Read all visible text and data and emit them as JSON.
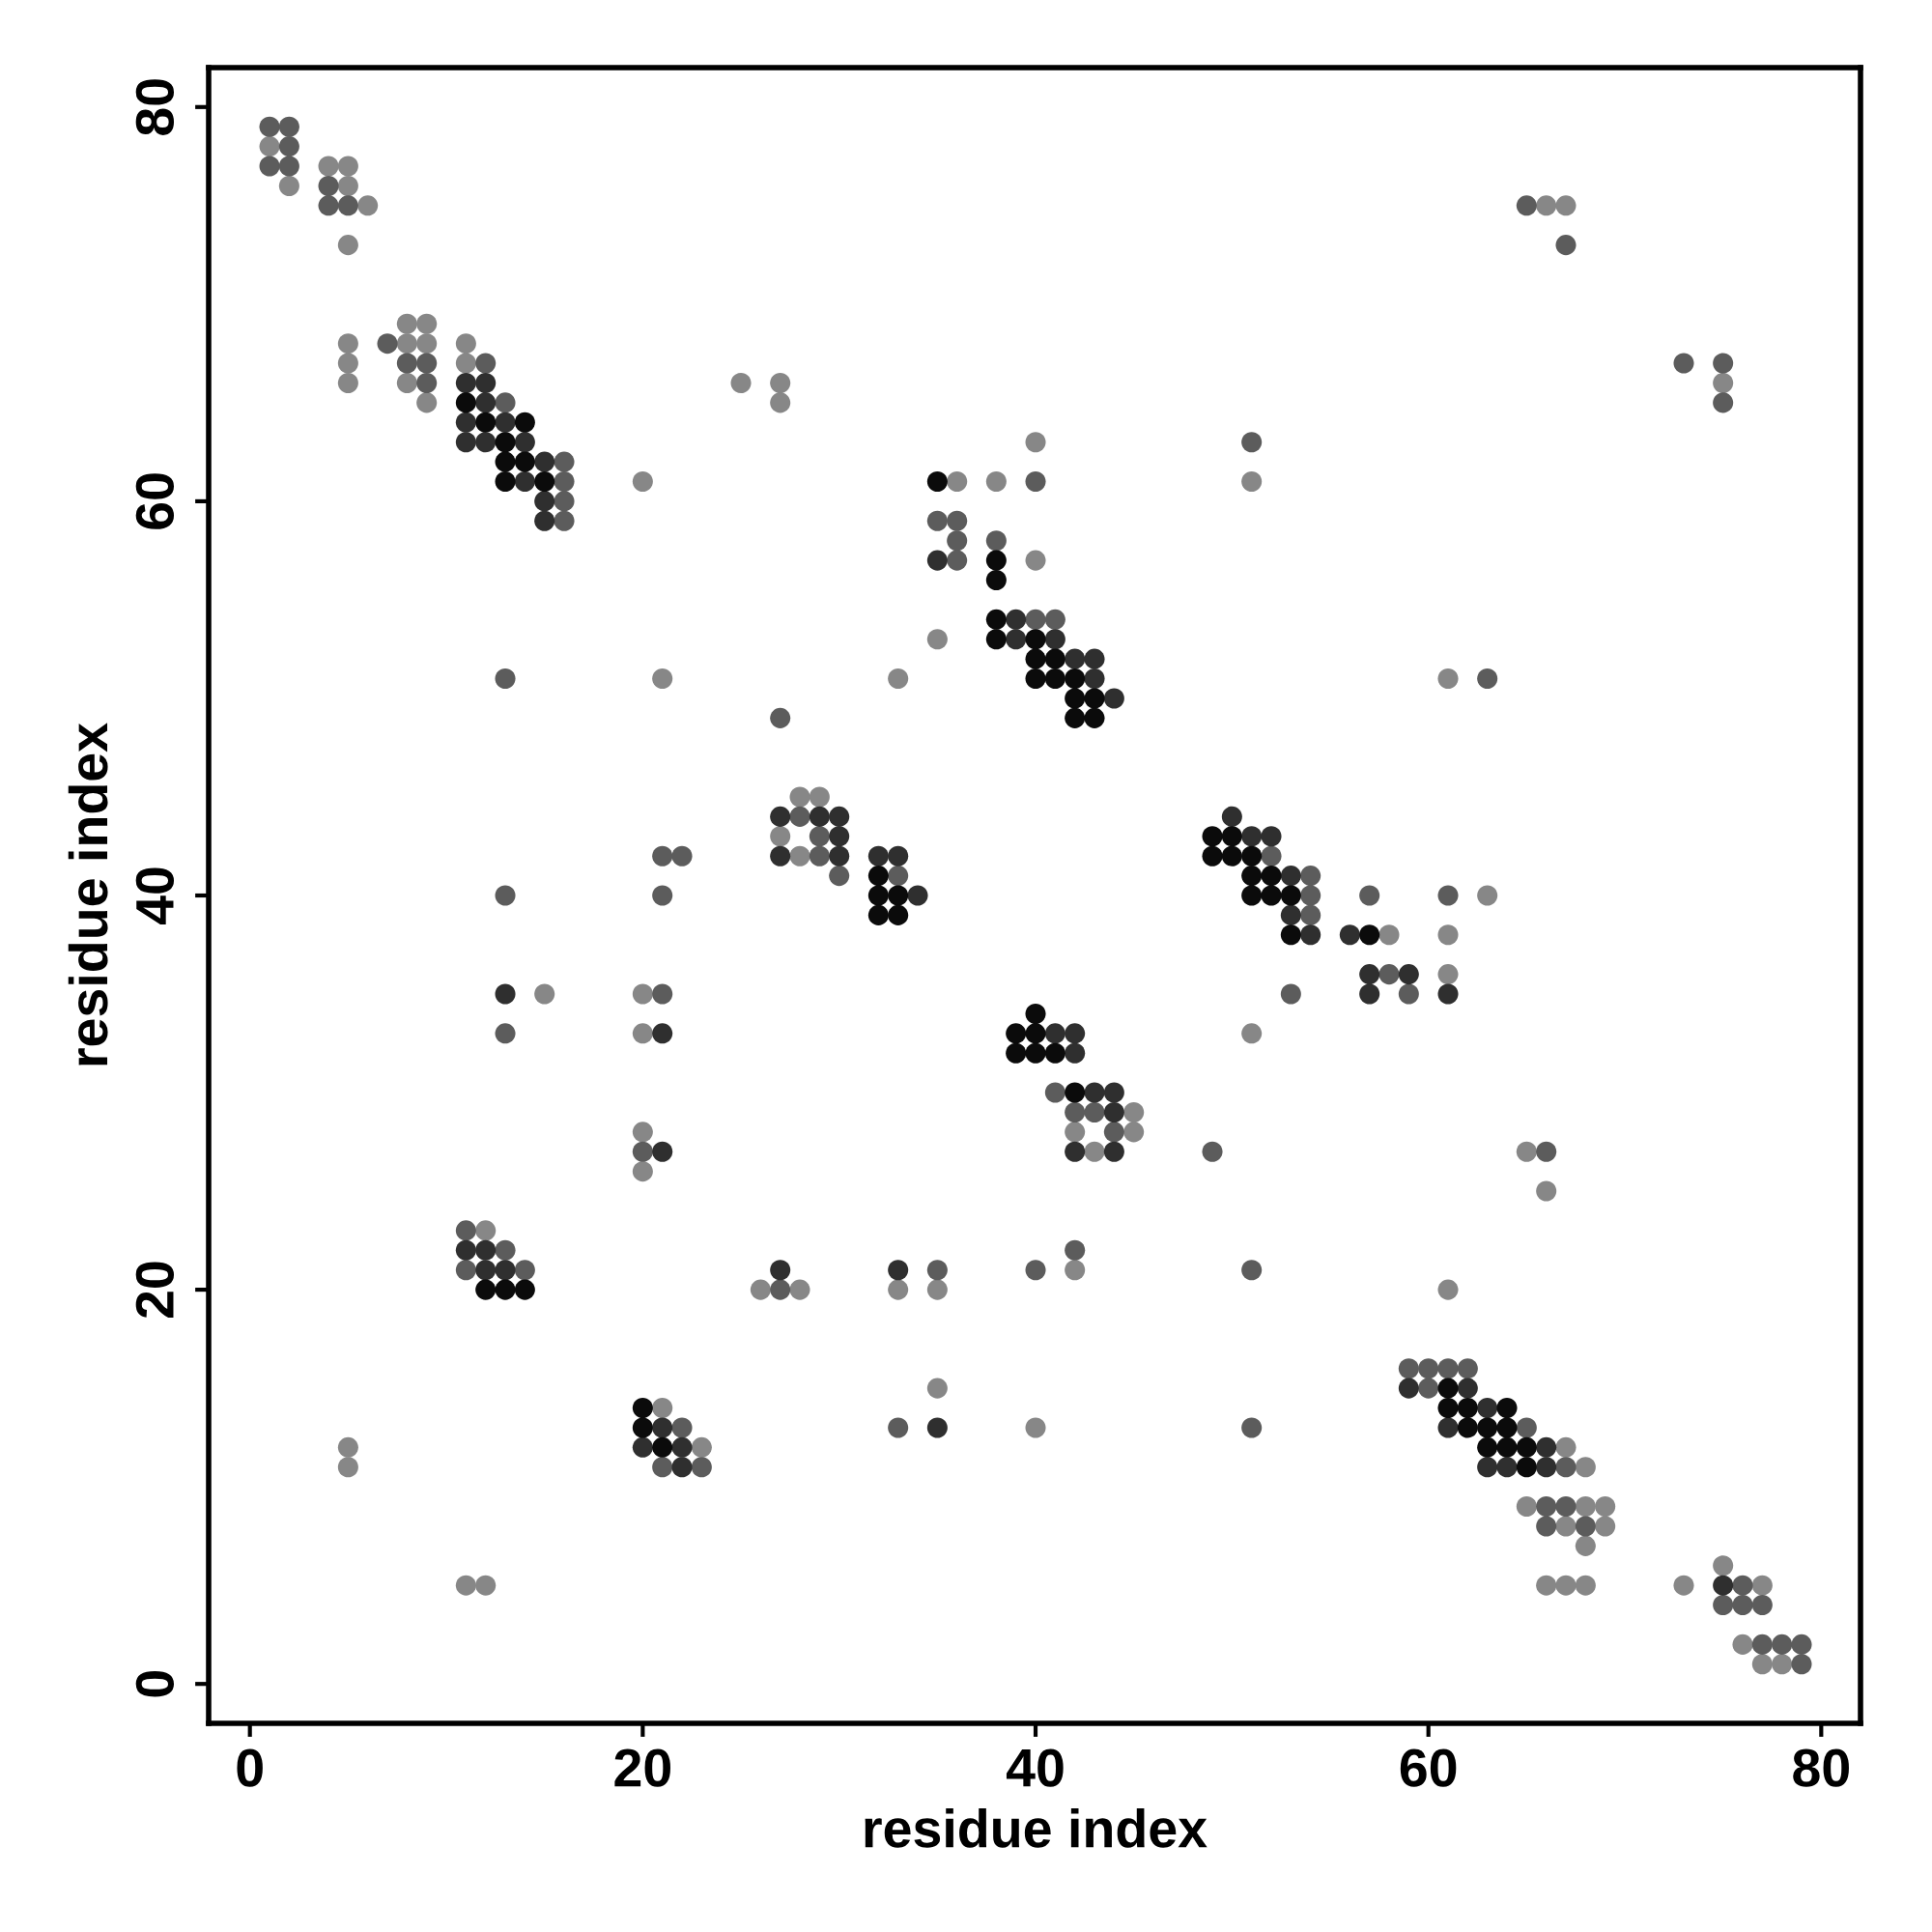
{
  "chart_data": {
    "type": "scatter",
    "xlabel": "residue index",
    "ylabel": "residue index",
    "xlim": [
      -2.1,
      82
    ],
    "ylim": [
      -2,
      82
    ],
    "xticks": [
      0,
      20,
      40,
      60,
      80
    ],
    "yticks": [
      0,
      20,
      40,
      60,
      80
    ],
    "grid": false,
    "marker": "circle",
    "series": [
      {
        "color": "#878787",
        "x": [
          1,
          4,
          5,
          2,
          5,
          6,
          5,
          66,
          67,
          75,
          5,
          8,
          9,
          11,
          8,
          9,
          5,
          11,
          5,
          8,
          25,
          27,
          9,
          27,
          40,
          20,
          36,
          38,
          51,
          40,
          35,
          21,
          33,
          61,
          28,
          29,
          27,
          28,
          63,
          58,
          61,
          61,
          15,
          20,
          20,
          51,
          45,
          20,
          42,
          45,
          43,
          65,
          20,
          66,
          12,
          42,
          26,
          28,
          33,
          35,
          61,
          35,
          21,
          40,
          5,
          23,
          67,
          5,
          68,
          65,
          68,
          69,
          67,
          69,
          68,
          75,
          11,
          12,
          66,
          67,
          68,
          73,
          77,
          76,
          77,
          78
        ],
        "values": [
          78,
          77,
          77,
          76,
          76,
          75,
          73,
          75,
          75,
          66,
          68,
          68,
          68,
          68,
          69,
          69,
          67,
          67,
          66,
          66,
          66,
          66,
          65,
          65,
          63,
          61,
          61,
          61,
          61,
          57,
          53,
          51,
          51,
          51,
          45,
          45,
          43,
          42,
          40,
          38,
          38,
          36,
          35,
          35,
          33,
          33,
          29,
          28,
          28,
          28,
          27,
          27,
          26,
          25,
          23,
          21,
          20,
          20,
          20,
          20,
          20,
          15,
          14,
          13,
          12,
          12,
          12,
          11,
          11,
          9,
          9,
          9,
          8,
          8,
          7,
          6,
          5,
          5,
          5,
          5,
          5,
          5,
          5,
          2,
          1,
          1
        ]
      },
      {
        "color": "#5c5c5c",
        "x": [
          1,
          2,
          2,
          1,
          2,
          4,
          4,
          5,
          65,
          67,
          73,
          75,
          75,
          7,
          8,
          9,
          12,
          9,
          13,
          51,
          16,
          16,
          40,
          16,
          16,
          35,
          36,
          36,
          38,
          36,
          40,
          41,
          13,
          63,
          27,
          28,
          29,
          21,
          22,
          29,
          52,
          30,
          33,
          54,
          13,
          21,
          54,
          57,
          61,
          54,
          58,
          21,
          53,
          59,
          13,
          41,
          42,
          43,
          44,
          20,
          49,
          66,
          11,
          13,
          42,
          11,
          14,
          35,
          40,
          51,
          27,
          59,
          60,
          61,
          62,
          60,
          22,
          33,
          51,
          65,
          21,
          23,
          67,
          66,
          67,
          66,
          68,
          76,
          75,
          76,
          77,
          77,
          78,
          79,
          79
        ],
        "values": [
          79,
          79,
          78,
          77,
          77,
          76,
          75,
          75,
          75,
          73,
          67,
          67,
          65,
          68,
          67,
          67,
          67,
          66,
          65,
          63,
          62,
          61,
          61,
          60,
          59,
          59,
          59,
          58,
          58,
          57,
          54,
          54,
          51,
          51,
          49,
          44,
          43,
          42,
          42,
          42,
          42,
          41,
          41,
          41,
          40,
          40,
          40,
          40,
          40,
          39,
          36,
          35,
          35,
          35,
          33,
          30,
          29,
          29,
          28,
          27,
          27,
          27,
          23,
          22,
          22,
          21,
          21,
          21,
          21,
          21,
          20,
          16,
          16,
          16,
          16,
          15,
          13,
          13,
          13,
          13,
          11,
          11,
          11,
          9,
          9,
          8,
          8,
          5,
          4,
          4,
          4,
          2,
          2,
          2,
          1
        ]
      },
      {
        "color": "#2f2f2f",
        "x": [
          11,
          12,
          12,
          11,
          13,
          11,
          12,
          14,
          15,
          14,
          15,
          15,
          35,
          39,
          39,
          41,
          42,
          43,
          43,
          44,
          27,
          29,
          30,
          50,
          30,
          51,
          52,
          27,
          30,
          32,
          33,
          53,
          34,
          53,
          54,
          56,
          57,
          59,
          13,
          57,
          61,
          21,
          41,
          42,
          42,
          43,
          44,
          44,
          21,
          42,
          44,
          11,
          12,
          12,
          13,
          27,
          33,
          59,
          62,
          63,
          21,
          35,
          61,
          20,
          22,
          66,
          22,
          63,
          64,
          66,
          75
        ],
        "values": [
          66,
          66,
          65,
          64,
          64,
          63,
          63,
          63,
          62,
          61,
          60,
          59,
          57,
          54,
          53,
          53,
          52,
          52,
          51,
          50,
          44,
          44,
          44,
          44,
          43,
          43,
          43,
          42,
          42,
          42,
          42,
          41,
          40,
          39,
          38,
          38,
          36,
          36,
          35,
          35,
          35,
          33,
          33,
          33,
          32,
          30,
          30,
          29,
          27,
          27,
          27,
          22,
          22,
          21,
          21,
          21,
          21,
          15,
          15,
          14,
          13,
          13,
          13,
          12,
          12,
          12,
          11,
          11,
          11,
          11,
          5
        ]
      },
      {
        "color": "#0b0b0b",
        "x": [
          11,
          12,
          14,
          13,
          13,
          14,
          13,
          15,
          35,
          38,
          38,
          38,
          38,
          40,
          40,
          41,
          40,
          41,
          42,
          42,
          43,
          42,
          43,
          49,
          50,
          49,
          50,
          51,
          32,
          51,
          52,
          32,
          33,
          51,
          52,
          53,
          32,
          33,
          53,
          57,
          40,
          39,
          40,
          39,
          40,
          41,
          42,
          12,
          13,
          14,
          61,
          20,
          61,
          62,
          64,
          20,
          62,
          63,
          64,
          21,
          63,
          64,
          65,
          65
        ],
        "values": [
          65,
          64,
          64,
          63,
          62,
          62,
          61,
          61,
          61,
          57,
          56,
          54,
          53,
          53,
          52,
          52,
          51,
          51,
          51,
          50,
          50,
          49,
          49,
          43,
          43,
          42,
          42,
          42,
          41,
          41,
          41,
          40,
          40,
          40,
          40,
          40,
          39,
          39,
          38,
          38,
          34,
          33,
          33,
          32,
          32,
          32,
          30,
          20,
          20,
          20,
          15,
          14,
          14,
          14,
          14,
          13,
          13,
          13,
          13,
          12,
          12,
          12,
          12,
          11
        ]
      }
    ]
  }
}
